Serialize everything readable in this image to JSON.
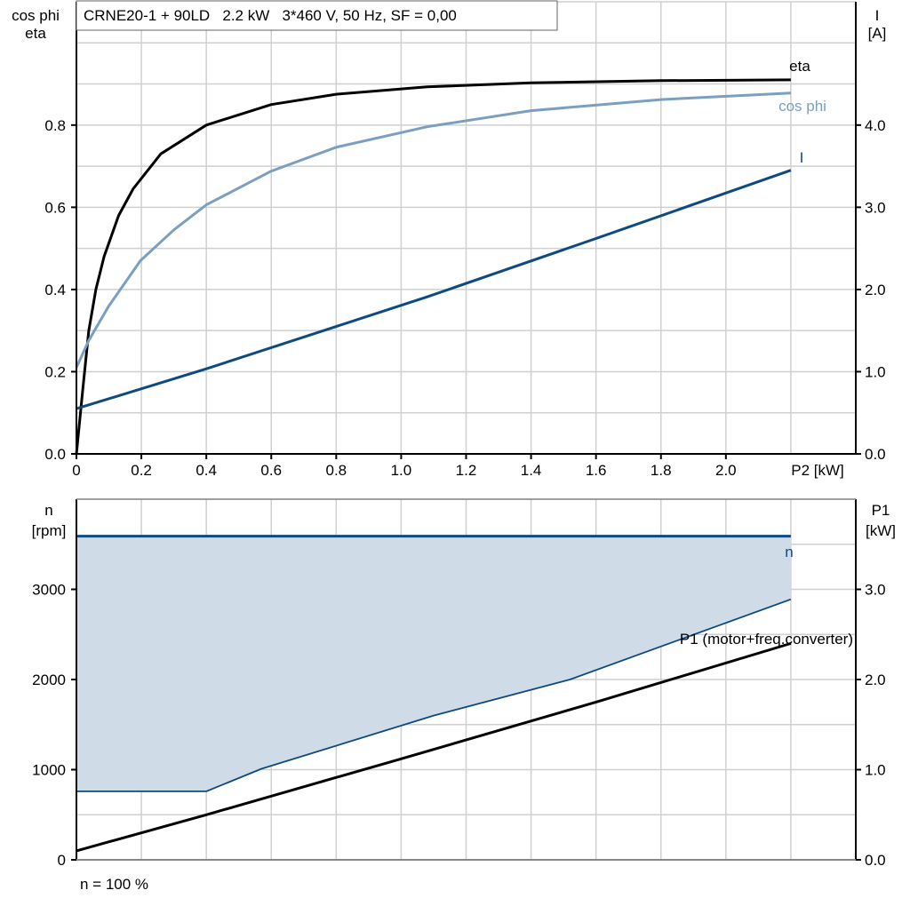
{
  "chart_data": [
    {
      "type": "line",
      "title": "CRNE20-1 + 90LD   2.2 kW   3*460 V, 50 Hz, SF = 0,00",
      "xlabel": "P2 [kW]",
      "ylabel_left": [
        "cos phi",
        "eta"
      ],
      "ylabel_right": [
        "I",
        "[A]"
      ],
      "xlim": [
        0,
        2.4
      ],
      "ylim_left": [
        0,
        1.1
      ],
      "ylim_right": [
        0,
        5.5
      ],
      "x_ticks": [
        "0",
        "0.2",
        "0.4",
        "0.6",
        "0.8",
        "1.0",
        "1.2",
        "1.4",
        "1.6",
        "1.8",
        "2.0"
      ],
      "x_tick_values": [
        0,
        0.2,
        0.4,
        0.6,
        0.8,
        1.0,
        1.2,
        1.4,
        1.6,
        1.8,
        2.0
      ],
      "y_left_ticks": [
        "0.0",
        "0.2",
        "0.4",
        "0.6",
        "0.8"
      ],
      "y_left_tick_values": [
        0,
        0.2,
        0.4,
        0.6,
        0.8
      ],
      "y_right_ticks": [
        "0.0",
        "1.0",
        "2.0",
        "3.0",
        "4.0"
      ],
      "y_right_tick_values": [
        0,
        1,
        2,
        3,
        4
      ],
      "grid": true,
      "series": [
        {
          "name": "eta",
          "axis": "left",
          "color": "#000000",
          "x": [
            0,
            0.02,
            0.038,
            0.06,
            0.085,
            0.13,
            0.175,
            0.26,
            0.4,
            0.6,
            0.8,
            1.08,
            1.4,
            1.8,
            2.2
          ],
          "y": [
            0,
            0.16,
            0.3,
            0.4,
            0.48,
            0.58,
            0.645,
            0.73,
            0.8,
            0.85,
            0.875,
            0.893,
            0.903,
            0.908,
            0.91
          ]
        },
        {
          "name": "cos phi",
          "axis": "left",
          "color": "#7a9fc0",
          "x": [
            0,
            0.038,
            0.1,
            0.197,
            0.3,
            0.4,
            0.6,
            0.8,
            1.08,
            1.4,
            1.8,
            2.2
          ],
          "y": [
            0.21,
            0.276,
            0.36,
            0.47,
            0.545,
            0.606,
            0.688,
            0.746,
            0.796,
            0.835,
            0.862,
            0.878
          ]
        },
        {
          "name": "I",
          "axis": "right",
          "color": "#0e4a80",
          "x": [
            0,
            0.4,
            1.08,
            1.6,
            2.2
          ],
          "y": [
            0.55,
            1.035,
            1.91,
            2.62,
            3.45
          ]
        }
      ]
    },
    {
      "type": "line",
      "xlabel": "",
      "ylabel_left": [
        "n",
        "[rpm]"
      ],
      "ylabel_right": [
        "P1",
        "[kW]"
      ],
      "xlim": [
        0,
        2.4
      ],
      "ylim_left": [
        0,
        4000
      ],
      "ylim_right": [
        0,
        4.0
      ],
      "y_left_ticks": [
        "0",
        "1000",
        "2000",
        "3000"
      ],
      "y_left_tick_values": [
        0,
        1000,
        2000,
        3000
      ],
      "y_right_ticks": [
        "0.0",
        "1.0",
        "2.0",
        "3.0"
      ],
      "y_right_tick_values": [
        0,
        1,
        2,
        3
      ],
      "grid": true,
      "fill_color": "#cfdbe7",
      "series": [
        {
          "name": "n",
          "axis": "left",
          "color": "#0e4a80",
          "x": [
            0,
            2.2
          ],
          "y": [
            3590,
            3590
          ]
        },
        {
          "name": "",
          "axis": "left",
          "color": "#0e4a80",
          "role": "min-speed",
          "x": [
            0,
            0.4,
            0.57,
            1.1,
            1.52,
            2.2
          ],
          "y": [
            760,
            760,
            1010,
            1600,
            2000,
            2890
          ]
        },
        {
          "name": "P1 (motor+freq.converter)",
          "axis": "right",
          "color": "#000000",
          "x": [
            0,
            0.4,
            1.0,
            1.6,
            2.2
          ],
          "y": [
            0.1,
            0.5,
            1.12,
            1.75,
            2.4
          ]
        }
      ],
      "footnote": "n = 100 %"
    }
  ]
}
